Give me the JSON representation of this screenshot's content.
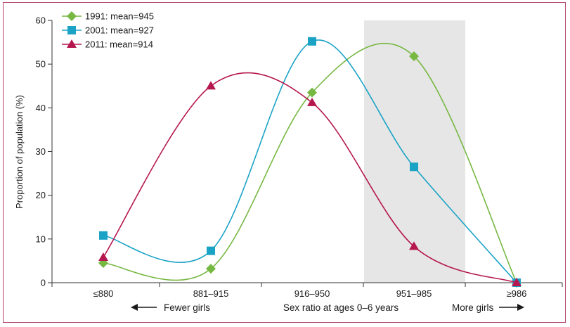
{
  "chart_data": {
    "type": "line",
    "categories": [
      "≤880",
      "881–915",
      "916–950",
      "951–985",
      "≥986"
    ],
    "xlabel": "Sex ratio at ages 0–6 years",
    "xlabel_left": "Fewer girls",
    "xlabel_right": "More girls",
    "ylabel": "Proportion of population (%)",
    "ylim": [
      0,
      60
    ],
    "yticks": [
      0,
      10,
      20,
      30,
      40,
      50,
      60
    ],
    "grid": false,
    "legend_position": "top-left",
    "highlight_band": {
      "category": "951–985",
      "color": "#e6e6e6"
    },
    "series": [
      {
        "name": "1991: mean=945",
        "marker": "diamond",
        "color": "#77b843",
        "values": [
          4.5,
          3.2,
          43.5,
          51.8,
          0
        ]
      },
      {
        "name": "2001: mean=927",
        "marker": "square",
        "color": "#1ba3c6",
        "values": [
          10.8,
          7.3,
          55.2,
          26.5,
          0
        ]
      },
      {
        "name": "2011: mean=914",
        "marker": "triangle",
        "color": "#b5174f",
        "values": [
          5.8,
          45.0,
          41.2,
          8.3,
          0
        ]
      }
    ]
  }
}
